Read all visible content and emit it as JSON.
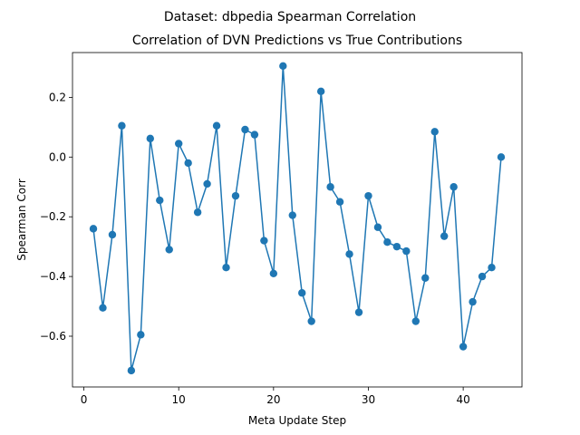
{
  "chart_data": {
    "type": "line",
    "suptitle": "Dataset: dbpedia Spearman Correlation",
    "title": "Correlation of DVN Predictions vs True Contributions",
    "xlabel": "Meta Update Step",
    "ylabel": "Spearman Corr",
    "xlim": [
      -1.2,
      46.2
    ],
    "ylim": [
      -0.77,
      0.35
    ],
    "xticks": [
      0,
      10,
      20,
      30,
      40
    ],
    "xtick_labels": [
      "0",
      "10",
      "20",
      "30",
      "40"
    ],
    "yticks": [
      -0.6,
      -0.4,
      -0.2,
      0.0,
      0.2
    ],
    "ytick_labels": [
      "−0.6",
      "−0.4",
      "−0.2",
      "0.0",
      "0.2"
    ],
    "grid": false,
    "series": [
      {
        "color": "#1f77b4",
        "marker": "circle",
        "x": [
          1,
          2,
          3,
          4,
          5,
          6,
          7,
          8,
          9,
          10,
          11,
          12,
          13,
          14,
          15,
          16,
          17,
          18,
          19,
          20,
          21,
          22,
          23,
          24,
          25,
          26,
          27,
          28,
          29,
          30,
          31,
          32,
          33,
          34,
          35,
          36,
          37,
          38,
          39,
          40,
          41,
          42,
          43,
          44
        ],
        "y": [
          -0.24,
          -0.505,
          -0.26,
          0.105,
          -0.715,
          -0.595,
          0.062,
          -0.145,
          -0.31,
          0.045,
          -0.02,
          -0.185,
          -0.09,
          0.105,
          -0.37,
          -0.13,
          0.092,
          0.075,
          -0.28,
          -0.39,
          0.305,
          -0.195,
          -0.455,
          -0.55,
          0.22,
          -0.1,
          -0.15,
          -0.325,
          -0.52,
          -0.13,
          -0.235,
          -0.285,
          -0.3,
          -0.315,
          -0.55,
          -0.405,
          0.085,
          -0.265,
          -0.1,
          -0.635,
          -0.485,
          -0.4,
          -0.37,
          0.0
        ]
      }
    ]
  }
}
